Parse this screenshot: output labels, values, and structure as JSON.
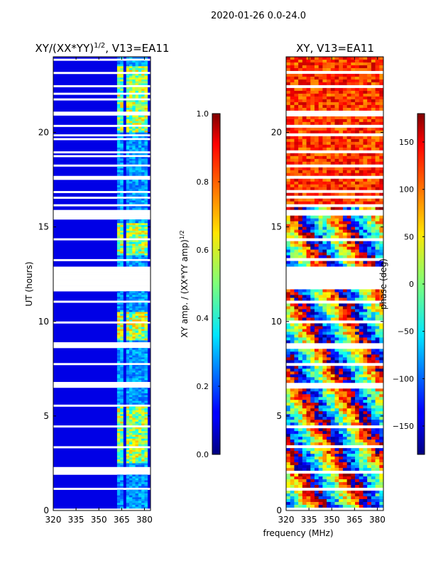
{
  "chart_data": [
    {
      "type": "heatmap",
      "title": "XY/(XX*YY)^1/2, V13=EA11",
      "title_main": "XY/(XX*YY)",
      "title_exp": "1/2",
      "title_tail": ", V13=EA11",
      "suptitle": "2020-01-26 0.0-24.0",
      "xlabel": "frequency (MHz)",
      "ylabel": "UT (hours)",
      "xlim": [
        320,
        384
      ],
      "ylim": [
        0,
        24
      ],
      "xticks": [
        320,
        335,
        350,
        365,
        380
      ],
      "yticks": [
        0,
        5,
        10,
        15,
        20
      ],
      "colormap": "jet",
      "colorbar": {
        "label": "XY amp. / (XX*YY amp)^1/2",
        "label_main": "XY amp. / (XX*YY amp)",
        "label_exp": "1/2",
        "range": [
          0.0,
          1.0
        ],
        "ticks": [
          "0.0",
          "0.2",
          "0.4",
          "0.6",
          "0.8",
          "1.0"
        ]
      },
      "hot_channels_mhz": [
        [
          362,
          366
        ],
        [
          368,
          371
        ],
        [
          373,
          377
        ],
        [
          377,
          381
        ]
      ],
      "hot_hours": [
        [
          2.5,
          5.5
        ],
        [
          9.0,
          10.5
        ],
        [
          13.5,
          15.2
        ],
        [
          20.0,
          23.5
        ]
      ]
    },
    {
      "type": "heatmap",
      "title": "XY, V13=EA11",
      "xlabel": "frequency (MHz)",
      "ylabel": "",
      "xlim": [
        320,
        384
      ],
      "ylim": [
        0,
        24
      ],
      "xticks": [
        320,
        335,
        350,
        365,
        380
      ],
      "yticks": [
        0,
        5,
        10,
        15,
        20
      ],
      "colormap": "jet",
      "colorbar": {
        "label": "phase (deg)",
        "range": [
          -180,
          180
        ],
        "ticks": [
          "-150",
          "-100",
          "-50",
          "0",
          "50",
          "100",
          "150"
        ]
      }
    }
  ],
  "flagged_hours": [
    [
      11.65,
      12.9
    ],
    [
      15.55,
      15.85
    ],
    [
      1.9,
      2.15
    ],
    [
      6.5,
      6.75
    ],
    [
      8.6,
      8.85
    ]
  ],
  "colors": {
    "background": "#ffffff",
    "axis": "#000000",
    "flag": "#ffffff"
  }
}
